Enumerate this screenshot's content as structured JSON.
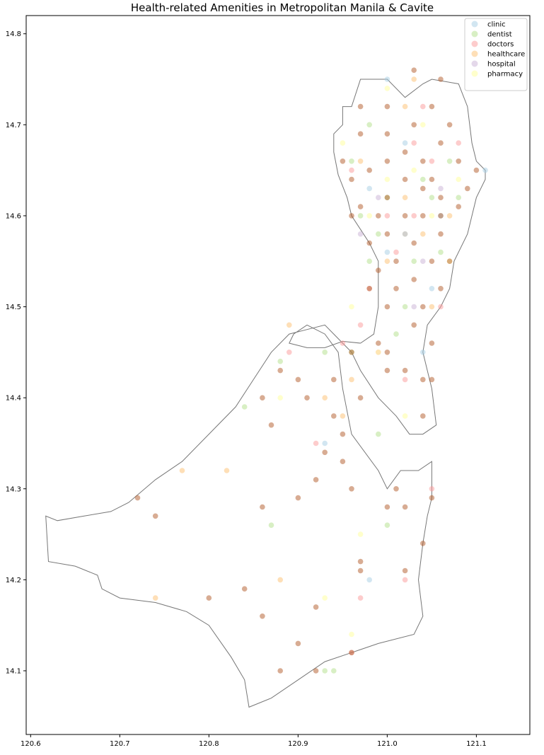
{
  "chart_data": {
    "type": "scatter",
    "title": "Health-related Amenities in Metropolitan Manila & Cavite",
    "xlabel": "",
    "ylabel": "",
    "xlim": [
      120.595,
      121.16
    ],
    "ylim": [
      14.03,
      14.82
    ],
    "xticks": [
      "120.6",
      "120.7",
      "120.8",
      "120.9",
      "121.0",
      "121.1"
    ],
    "xtick_values": [
      120.6,
      120.7,
      120.8,
      120.9,
      121.0,
      121.1
    ],
    "yticks": [
      "14.1",
      "14.2",
      "14.3",
      "14.4",
      "14.5",
      "14.6",
      "14.7",
      "14.8"
    ],
    "ytick_values": [
      14.1,
      14.2,
      14.3,
      14.4,
      14.5,
      14.6,
      14.7,
      14.8
    ],
    "grid": false,
    "legend_position": "top-right",
    "boundary": {
      "color": "#777777",
      "outline": [
        [
          120.617,
          14.27
        ],
        [
          120.62,
          14.22
        ],
        [
          120.65,
          14.215
        ],
        [
          120.675,
          14.205
        ],
        [
          120.68,
          14.19
        ],
        [
          120.7,
          14.18
        ],
        [
          120.74,
          14.175
        ],
        [
          120.775,
          14.165
        ],
        [
          120.8,
          14.15
        ],
        [
          120.825,
          14.115
        ],
        [
          120.84,
          14.09
        ],
        [
          120.845,
          14.06
        ],
        [
          120.87,
          14.07
        ],
        [
          120.9,
          14.09
        ],
        [
          120.93,
          14.11
        ],
        [
          120.96,
          14.12
        ],
        [
          120.99,
          14.13
        ],
        [
          121.03,
          14.14
        ],
        [
          121.04,
          14.16
        ],
        [
          121.035,
          14.2
        ],
        [
          121.04,
          14.24
        ],
        [
          121.045,
          14.27
        ],
        [
          121.05,
          14.29
        ],
        [
          121.05,
          14.33
        ],
        [
          121.035,
          14.32
        ],
        [
          121.015,
          14.32
        ],
        [
          121.0,
          14.3
        ],
        [
          120.99,
          14.32
        ],
        [
          120.96,
          14.36
        ],
        [
          120.95,
          14.41
        ],
        [
          120.945,
          14.45
        ],
        [
          120.93,
          14.47
        ],
        [
          120.91,
          14.48
        ],
        [
          120.895,
          14.47
        ],
        [
          120.89,
          14.46
        ],
        [
          120.91,
          14.455
        ],
        [
          120.93,
          14.455
        ],
        [
          120.95,
          14.462
        ],
        [
          120.97,
          14.46
        ],
        [
          120.985,
          14.47
        ],
        [
          120.99,
          14.5
        ],
        [
          120.99,
          14.55
        ],
        [
          120.98,
          14.57
        ],
        [
          120.97,
          14.585
        ],
        [
          120.96,
          14.6
        ],
        [
          120.955,
          14.62
        ],
        [
          120.945,
          14.645
        ],
        [
          120.94,
          14.67
        ],
        [
          120.94,
          14.69
        ],
        [
          120.95,
          14.7
        ],
        [
          120.95,
          14.72
        ],
        [
          120.96,
          14.72
        ],
        [
          120.97,
          14.75
        ],
        [
          121.0,
          14.75
        ],
        [
          121.02,
          14.73
        ],
        [
          121.04,
          14.745
        ],
        [
          121.05,
          14.75
        ],
        [
          121.08,
          14.745
        ],
        [
          121.09,
          14.72
        ],
        [
          121.095,
          14.68
        ],
        [
          121.1,
          14.66
        ],
        [
          121.11,
          14.65
        ],
        [
          121.11,
          14.64
        ],
        [
          121.1,
          14.62
        ],
        [
          121.09,
          14.58
        ],
        [
          121.075,
          14.55
        ],
        [
          121.07,
          14.52
        ],
        [
          121.06,
          14.5
        ],
        [
          121.045,
          14.48
        ],
        [
          121.04,
          14.45
        ],
        [
          121.045,
          14.43
        ],
        [
          121.05,
          14.41
        ],
        [
          121.055,
          14.37
        ],
        [
          121.04,
          14.36
        ],
        [
          121.025,
          14.36
        ],
        [
          121.01,
          14.38
        ],
        [
          120.99,
          14.4
        ],
        [
          120.97,
          14.43
        ],
        [
          120.96,
          14.45
        ],
        [
          120.94,
          14.47
        ],
        [
          120.93,
          14.48
        ],
        [
          120.91,
          14.475
        ],
        [
          120.89,
          14.47
        ],
        [
          120.87,
          14.45
        ],
        [
          120.85,
          14.42
        ],
        [
          120.83,
          14.39
        ],
        [
          120.8,
          14.36
        ],
        [
          120.77,
          14.33
        ],
        [
          120.74,
          14.31
        ],
        [
          120.71,
          14.285
        ],
        [
          120.69,
          14.275
        ],
        [
          120.66,
          14.27
        ],
        [
          120.63,
          14.265
        ],
        [
          120.617,
          14.27
        ]
      ]
    },
    "series": [
      {
        "name": "clinic",
        "color": "#a6cee3",
        "points": [
          [
            121.11,
            14.65
          ],
          [
            121.0,
            14.75
          ],
          [
            120.98,
            14.63
          ],
          [
            121.06,
            14.6
          ],
          [
            120.93,
            14.35
          ],
          [
            121.0,
            14.56
          ],
          [
            120.98,
            14.2
          ],
          [
            121.05,
            14.52
          ],
          [
            121.02,
            14.68
          ],
          [
            121.04,
            14.45
          ]
        ]
      },
      {
        "name": "dentist",
        "color": "#b2df8a",
        "points": [
          [
            120.94,
            14.1
          ],
          [
            120.93,
            14.1
          ],
          [
            120.88,
            14.44
          ],
          [
            120.87,
            14.26
          ],
          [
            120.84,
            14.39
          ],
          [
            120.97,
            14.6
          ],
          [
            120.99,
            14.58
          ],
          [
            121.0,
            14.62
          ],
          [
            121.02,
            14.58
          ],
          [
            121.03,
            14.55
          ],
          [
            121.05,
            14.62
          ],
          [
            121.07,
            14.66
          ],
          [
            120.98,
            14.7
          ],
          [
            121.01,
            14.47
          ],
          [
            121.0,
            14.26
          ],
          [
            120.96,
            14.45
          ],
          [
            120.98,
            14.55
          ],
          [
            121.06,
            14.56
          ],
          [
            120.96,
            14.66
          ],
          [
            121.04,
            14.64
          ],
          [
            121.02,
            14.5
          ],
          [
            120.93,
            14.45
          ],
          [
            121.08,
            14.62
          ],
          [
            120.99,
            14.36
          ]
        ]
      },
      {
        "name": "doctors",
        "color": "#fb9a99",
        "points": [
          [
            120.96,
            14.12
          ],
          [
            120.97,
            14.18
          ],
          [
            121.02,
            14.2
          ],
          [
            121.05,
            14.3
          ],
          [
            120.92,
            14.35
          ],
          [
            120.89,
            14.45
          ],
          [
            120.95,
            14.46
          ],
          [
            120.99,
            14.45
          ],
          [
            121.01,
            14.56
          ],
          [
            121.03,
            14.6
          ],
          [
            121.05,
            14.66
          ],
          [
            121.04,
            14.72
          ],
          [
            120.96,
            14.65
          ],
          [
            121.08,
            14.68
          ],
          [
            120.98,
            14.52
          ],
          [
            121.0,
            14.6
          ],
          [
            120.97,
            14.48
          ],
          [
            121.06,
            14.5
          ],
          [
            121.02,
            14.42
          ],
          [
            121.03,
            14.68
          ]
        ]
      },
      {
        "name": "healthcare",
        "color": "#fdbf6f",
        "points": [
          [
            120.74,
            14.18
          ],
          [
            120.77,
            14.32
          ],
          [
            120.82,
            14.32
          ],
          [
            120.89,
            14.48
          ],
          [
            120.88,
            14.2
          ],
          [
            121.02,
            14.72
          ],
          [
            121.03,
            14.75
          ],
          [
            120.97,
            14.66
          ],
          [
            121.04,
            14.58
          ],
          [
            121.0,
            14.55
          ],
          [
            120.96,
            14.42
          ],
          [
            121.05,
            14.5
          ],
          [
            121.07,
            14.6
          ],
          [
            121.02,
            14.62
          ],
          [
            120.95,
            14.38
          ],
          [
            120.93,
            14.4
          ]
        ]
      },
      {
        "name": "hospital",
        "color": "#cab2d6",
        "points": [
          [
            121.02,
            14.58
          ],
          [
            121.04,
            14.55
          ],
          [
            121.06,
            14.63
          ],
          [
            120.99,
            14.62
          ],
          [
            121.03,
            14.5
          ],
          [
            120.97,
            14.58
          ]
        ]
      },
      {
        "name": "pharmacy",
        "color": "#ffff99",
        "points": [
          [
            120.96,
            14.14
          ],
          [
            120.97,
            14.25
          ],
          [
            120.88,
            14.4
          ],
          [
            120.93,
            14.18
          ],
          [
            121.02,
            14.38
          ],
          [
            121.0,
            14.74
          ],
          [
            121.04,
            14.7
          ],
          [
            120.98,
            14.6
          ],
          [
            121.05,
            14.6
          ],
          [
            120.96,
            14.5
          ],
          [
            121.07,
            14.55
          ],
          [
            121.0,
            14.64
          ],
          [
            121.08,
            14.64
          ],
          [
            120.99,
            14.45
          ],
          [
            121.03,
            14.65
          ],
          [
            120.95,
            14.68
          ]
        ]
      },
      {
        "name": "",
        "color": "#b15928",
        "points": [
          [
            120.72,
            14.29
          ],
          [
            120.74,
            14.27
          ],
          [
            120.8,
            14.18
          ],
          [
            120.84,
            14.19
          ],
          [
            120.86,
            14.16
          ],
          [
            120.88,
            14.1
          ],
          [
            120.9,
            14.13
          ],
          [
            120.92,
            14.17
          ],
          [
            120.92,
            14.1
          ],
          [
            120.96,
            14.12
          ],
          [
            120.97,
            14.22
          ],
          [
            121.02,
            14.21
          ],
          [
            121.04,
            14.24
          ],
          [
            121.05,
            14.29
          ],
          [
            121.0,
            14.28
          ],
          [
            121.01,
            14.3
          ],
          [
            120.96,
            14.3
          ],
          [
            120.93,
            14.34
          ],
          [
            120.95,
            14.33
          ],
          [
            120.94,
            14.38
          ],
          [
            120.9,
            14.29
          ],
          [
            120.86,
            14.4
          ],
          [
            120.87,
            14.37
          ],
          [
            120.88,
            14.43
          ],
          [
            120.91,
            14.4
          ],
          [
            120.94,
            14.42
          ],
          [
            120.97,
            14.4
          ],
          [
            120.99,
            14.46
          ],
          [
            121.0,
            14.45
          ],
          [
            121.02,
            14.43
          ],
          [
            121.04,
            14.42
          ],
          [
            121.04,
            14.38
          ],
          [
            120.98,
            14.52
          ],
          [
            121.0,
            14.5
          ],
          [
            121.03,
            14.48
          ],
          [
            121.05,
            14.46
          ],
          [
            121.06,
            14.52
          ],
          [
            121.07,
            14.55
          ],
          [
            121.06,
            14.58
          ],
          [
            121.05,
            14.55
          ],
          [
            121.03,
            14.53
          ],
          [
            121.01,
            14.55
          ],
          [
            121.0,
            14.58
          ],
          [
            120.99,
            14.6
          ],
          [
            120.97,
            14.61
          ],
          [
            121.0,
            14.62
          ],
          [
            121.02,
            14.64
          ],
          [
            121.04,
            14.63
          ],
          [
            121.06,
            14.62
          ],
          [
            121.08,
            14.61
          ],
          [
            121.09,
            14.63
          ],
          [
            121.1,
            14.65
          ],
          [
            121.08,
            14.66
          ],
          [
            121.06,
            14.68
          ],
          [
            121.04,
            14.66
          ],
          [
            121.02,
            14.67
          ],
          [
            121.0,
            14.66
          ],
          [
            120.98,
            14.65
          ],
          [
            120.96,
            14.64
          ],
          [
            120.95,
            14.66
          ],
          [
            120.97,
            14.69
          ],
          [
            121.0,
            14.69
          ],
          [
            121.03,
            14.7
          ],
          [
            121.05,
            14.72
          ],
          [
            121.07,
            14.7
          ],
          [
            121.06,
            14.75
          ],
          [
            121.03,
            14.76
          ],
          [
            121.0,
            14.72
          ],
          [
            120.97,
            14.72
          ],
          [
            120.96,
            14.6
          ],
          [
            120.98,
            14.57
          ],
          [
            121.02,
            14.6
          ],
          [
            121.04,
            14.6
          ],
          [
            121.06,
            14.6
          ],
          [
            121.03,
            14.57
          ],
          [
            121.05,
            14.64
          ],
          [
            121.01,
            14.52
          ],
          [
            120.99,
            14.54
          ],
          [
            121.04,
            14.5
          ],
          [
            121.05,
            14.42
          ],
          [
            121.0,
            14.43
          ],
          [
            120.92,
            14.31
          ],
          [
            120.96,
            14.45
          ],
          [
            120.9,
            14.42
          ],
          [
            120.95,
            14.36
          ],
          [
            120.86,
            14.28
          ],
          [
            120.97,
            14.21
          ],
          [
            121.02,
            14.28
          ]
        ]
      }
    ],
    "legend": [
      {
        "label": "clinic",
        "color": "#a6cee3"
      },
      {
        "label": "dentist",
        "color": "#b2df8a"
      },
      {
        "label": "doctors",
        "color": "#fb9a99"
      },
      {
        "label": "healthcare",
        "color": "#fdbf6f"
      },
      {
        "label": "hospital",
        "color": "#cab2d6"
      },
      {
        "label": "pharmacy",
        "color": "#ffff99"
      }
    ]
  }
}
